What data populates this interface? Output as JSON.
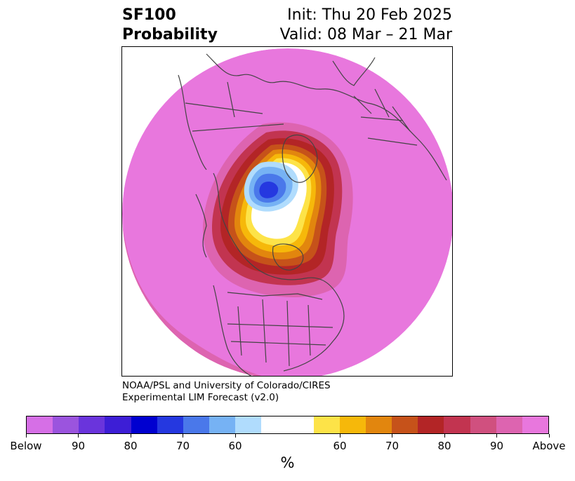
{
  "title": {
    "variable": "SF100",
    "subtitle": "Probability",
    "init": "Init: Thu 20 Feb 2025",
    "valid": "Valid: 08 Mar – 21 Mar"
  },
  "credit": {
    "line1": "NOAA/PSL and University of Colorado/CIRES",
    "line2": "Experimental LIM Forecast (v2.0)"
  },
  "colorbar": {
    "unit": "%",
    "colors": [
      "#d66fe6",
      "#9b54de",
      "#6a34dc",
      "#3d1ed6",
      "#0000d0",
      "#2538e0",
      "#4a78ea",
      "#76b2f4",
      "#b0dcfd",
      "#ffffff",
      "#fde348",
      "#f6b80a",
      "#e2860e",
      "#c6521a",
      "#b32526",
      "#c23450",
      "#d0507f",
      "#dd64b0",
      "#e877dd"
    ],
    "tick_labels": [
      "Below",
      "90",
      "80",
      "70",
      "60",
      "60",
      "70",
      "80",
      "90",
      "Above"
    ]
  },
  "map": {
    "projection": "north-polar-stereographic",
    "field_colors": {
      "background": "#e877dd",
      "outer_band_1": "#dd64b0",
      "outer_band_2": "#d0507f",
      "band_80": "#c23450",
      "band_75": "#b32526",
      "band_70": "#c6521a",
      "band_65": "#e2860e",
      "band_60": "#f6b80a",
      "band_55": "#fde348",
      "neutral": "#ffffff",
      "below_55": "#b0dcfd",
      "below_60": "#76b2f4",
      "below_65": "#4a78ea",
      "below_70": "#2538e0"
    },
    "coastline_color": "#444444"
  }
}
